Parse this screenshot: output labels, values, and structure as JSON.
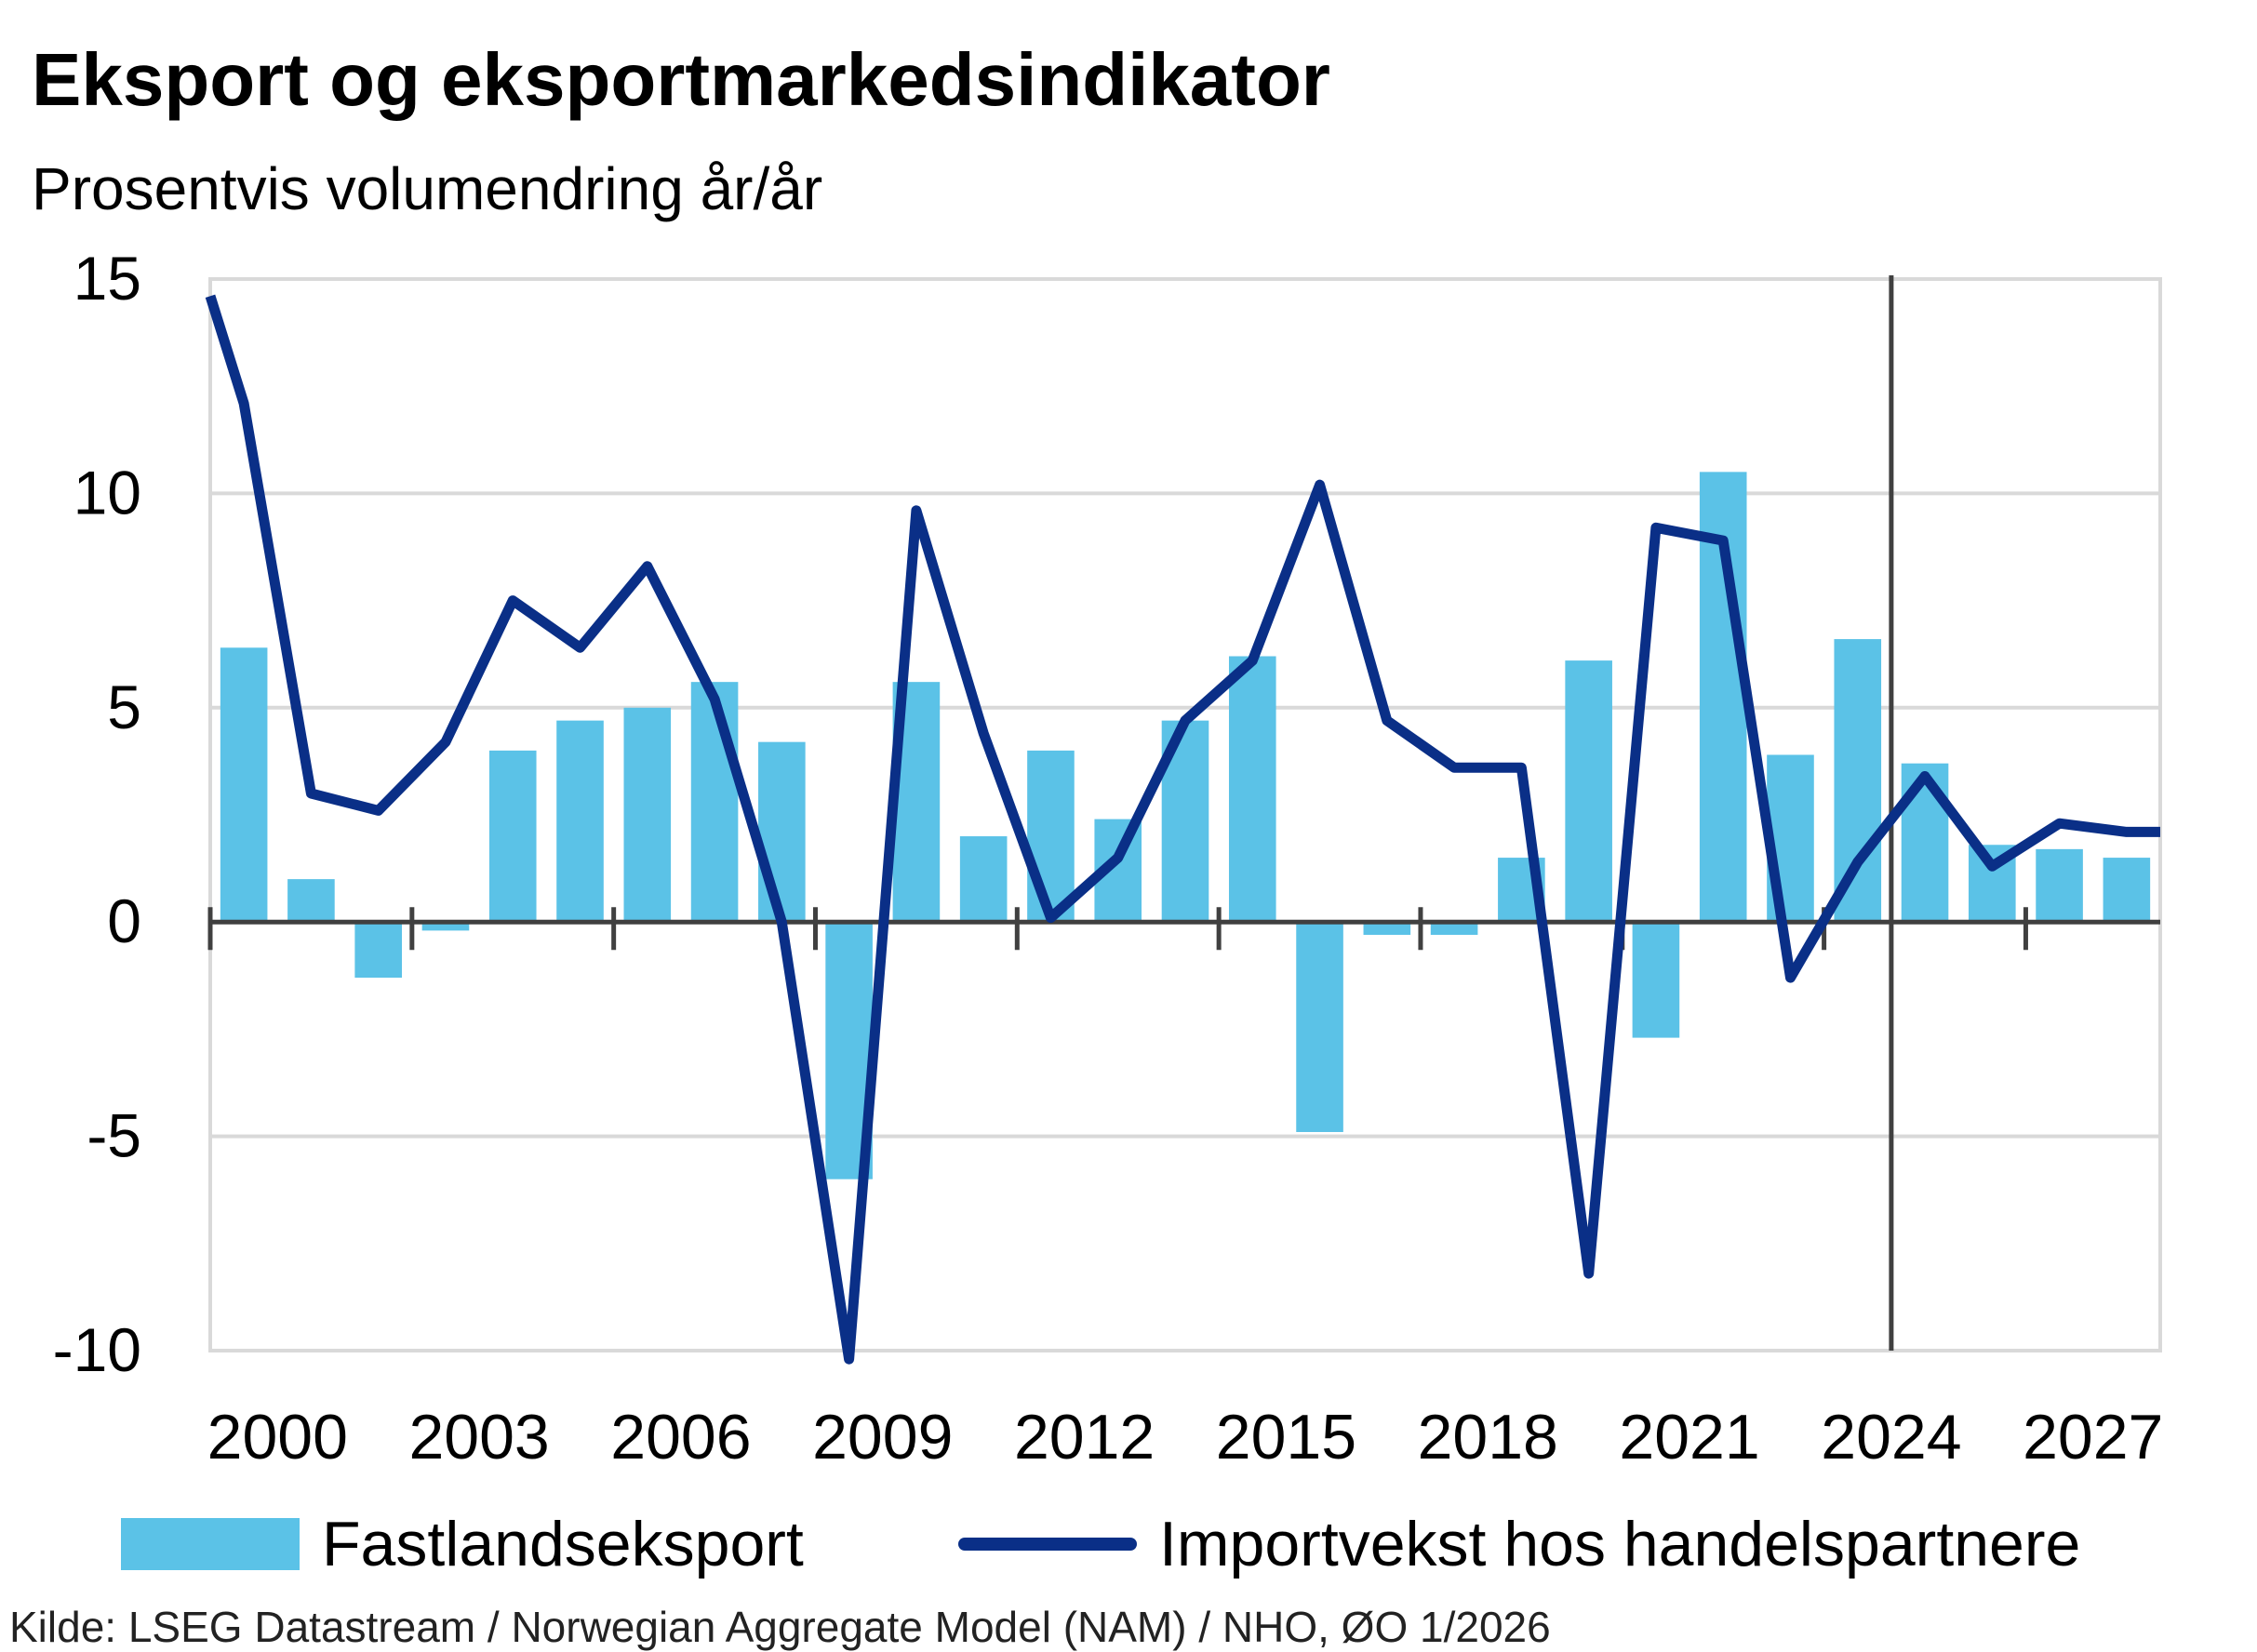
{
  "title": "Eksport og eksportmarkedsindikator",
  "subtitle": "Prosentvis volumendring år/år",
  "source": "Kilde: LSEG Datastream / Norwegian Aggregate Model (NAM) / NHO, ØO 1/2026",
  "colors": {
    "bar": "#5BC2E7",
    "line": "#0A2F87",
    "grid": "#D9D9D9",
    "axis": "#404040"
  },
  "chart_data": {
    "type": "bar",
    "x": [
      2000,
      2001,
      2002,
      2003,
      2004,
      2005,
      2006,
      2007,
      2008,
      2009,
      2010,
      2011,
      2012,
      2013,
      2014,
      2015,
      2016,
      2017,
      2018,
      2019,
      2020,
      2021,
      2022,
      2023,
      2024,
      2025,
      2026,
      2027,
      2028
    ],
    "x_tick_labels": [
      "2000",
      "2003",
      "2006",
      "2009",
      "2012",
      "2015",
      "2018",
      "2021",
      "2024",
      "2027"
    ],
    "y_tick_labels": [
      "15",
      "10",
      "5",
      "0",
      "-5",
      "-10"
    ],
    "ylim": [
      -10,
      15
    ],
    "grid": true,
    "legend_position": "bottom",
    "forecast_divider_after": 2024,
    "series": [
      {
        "name": "Fastlandseksport",
        "type": "bar",
        "values": [
          6.4,
          1.0,
          -1.3,
          -0.2,
          4.0,
          4.7,
          5.0,
          5.6,
          4.2,
          -6.0,
          5.6,
          2.0,
          4.0,
          2.4,
          4.7,
          6.2,
          -4.9,
          -0.3,
          -0.3,
          1.5,
          6.1,
          -2.7,
          10.5,
          3.9,
          6.6,
          3.7,
          1.8,
          1.7,
          1.5
        ]
      },
      {
        "name": "Importvekst hos handelspartnere",
        "type": "line",
        "values": [
          12.1,
          3.0,
          2.6,
          4.2,
          7.5,
          6.4,
          8.3,
          5.2,
          0.0,
          -10.2,
          9.6,
          4.4,
          0.1,
          1.5,
          4.7,
          6.1,
          10.2,
          4.7,
          3.6,
          3.6,
          -8.2,
          9.2,
          8.9,
          -1.3,
          1.4,
          3.4,
          1.3,
          2.3,
          2.1
        ]
      }
    ]
  }
}
